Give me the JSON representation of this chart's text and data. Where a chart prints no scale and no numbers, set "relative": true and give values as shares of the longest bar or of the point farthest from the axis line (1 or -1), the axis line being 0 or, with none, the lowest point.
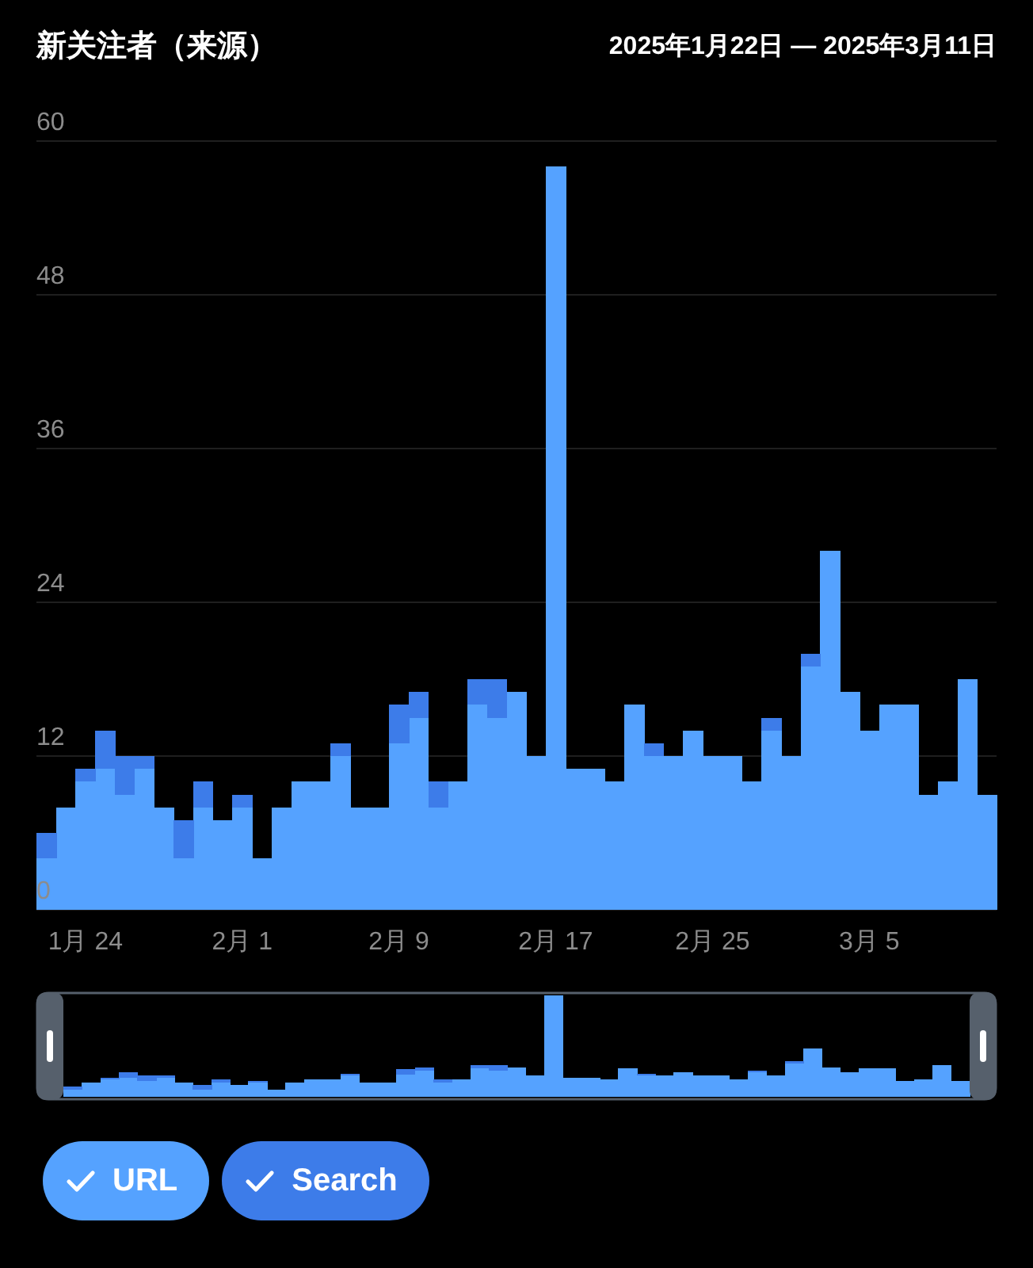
{
  "chart_data": [
    {
      "type": "bar",
      "stacked": true,
      "title": "新关注者（来源）",
      "subtitle": "2025年1月22日 — 2025年3月11日",
      "categories": [
        null,
        null,
        "1月 24",
        null,
        null,
        null,
        null,
        null,
        null,
        null,
        "2月 1",
        null,
        null,
        null,
        null,
        null,
        null,
        null,
        "2月 9",
        null,
        null,
        null,
        null,
        null,
        null,
        null,
        "2月 17",
        null,
        null,
        null,
        null,
        null,
        null,
        null,
        "2月 25",
        null,
        null,
        null,
        null,
        null,
        null,
        null,
        "3月 5",
        null,
        null,
        null,
        null,
        null,
        null
      ],
      "series": [
        {
          "name": "URL",
          "color": "#55a2ff",
          "values": [
            4,
            8,
            10,
            11,
            9,
            11,
            8,
            4,
            8,
            7,
            8,
            4,
            8,
            10,
            10,
            12,
            8,
            8,
            13,
            15,
            8,
            10,
            16,
            15,
            17,
            12,
            58,
            11,
            11,
            10,
            16,
            12,
            12,
            14,
            12,
            12,
            10,
            14,
            12,
            19,
            28,
            17,
            14,
            16,
            16,
            9,
            10,
            18,
            9
          ]
        },
        {
          "name": "Search",
          "color": "#3d7ce9",
          "values": [
            2,
            0,
            1,
            3,
            3,
            1,
            0,
            3,
            2,
            0,
            1,
            0,
            0,
            0,
            0,
            1,
            0,
            0,
            3,
            2,
            2,
            0,
            2,
            3,
            0,
            0,
            0,
            0,
            0,
            0,
            0,
            1,
            0,
            0,
            0,
            0,
            0,
            1,
            0,
            1,
            0,
            0,
            0,
            0,
            0,
            0,
            0,
            0,
            0
          ]
        }
      ],
      "ylim": [
        0,
        60
      ],
      "yticks": [
        0,
        12,
        24,
        36,
        48,
        60
      ],
      "grid": "y",
      "legend": "bottom"
    },
    {
      "type": "bar",
      "stacked": true,
      "relative": true,
      "categories": [
        null,
        null,
        null,
        null,
        null,
        null,
        null,
        null,
        null,
        null,
        null,
        null,
        null,
        null,
        null,
        null,
        null,
        null,
        null,
        null,
        null,
        null,
        null,
        null,
        null,
        null,
        null,
        null,
        null,
        null,
        null,
        null,
        null,
        null,
        null,
        null,
        null,
        null,
        null,
        null,
        null,
        null,
        null,
        null,
        null,
        null,
        null,
        null,
        null
      ],
      "series": [
        {
          "color": "#55a2ff",
          "values": [
            0.07,
            0.14,
            0.17,
            0.19,
            0.16,
            0.19,
            0.14,
            0.07,
            0.14,
            0.12,
            0.14,
            0.07,
            0.14,
            0.17,
            0.17,
            0.21,
            0.14,
            0.14,
            0.22,
            0.26,
            0.14,
            0.17,
            0.28,
            0.26,
            0.29,
            0.21,
            1,
            0.19,
            0.19,
            0.17,
            0.28,
            0.21,
            0.21,
            0.24,
            0.21,
            0.21,
            0.17,
            0.24,
            0.21,
            0.33,
            0.48,
            0.29,
            0.24,
            0.28,
            0.28,
            0.16,
            0.17,
            0.31,
            0.16
          ]
        },
        {
          "color": "#3d7ce9",
          "values": [
            0.03,
            0,
            0.02,
            0.05,
            0.05,
            0.02,
            0,
            0.05,
            0.03,
            0,
            0.02,
            0,
            0,
            0,
            0,
            0.02,
            0,
            0,
            0.05,
            0.03,
            0.03,
            0,
            0.03,
            0.05,
            0,
            0,
            0,
            0,
            0,
            0,
            0,
            0.02,
            0,
            0,
            0,
            0,
            0,
            0.02,
            0,
            0.02,
            0,
            0,
            0,
            0,
            0,
            0,
            0,
            0,
            0
          ]
        }
      ]
    }
  ]
}
